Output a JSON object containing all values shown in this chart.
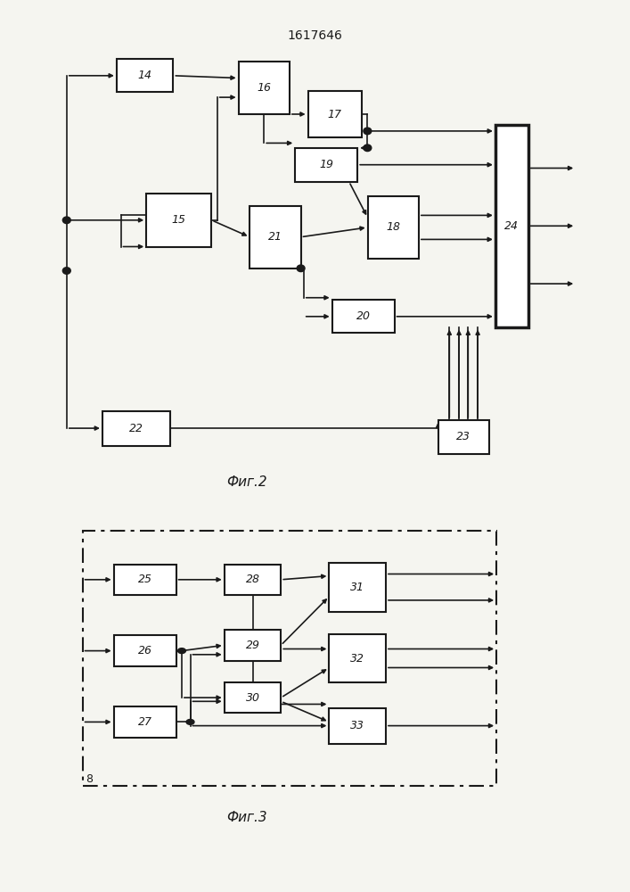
{
  "title": "1617646",
  "fig2_label": "Фиг.2",
  "fig3_label": "Фиг.3",
  "bg_color": "#f5f5f0",
  "box_color": "#ffffff",
  "line_color": "#1a1a1a",
  "fig2_blocks": {
    "14": [
      0.2,
      0.88,
      0.1,
      0.068
    ],
    "15": [
      0.26,
      0.58,
      0.115,
      0.11
    ],
    "16": [
      0.41,
      0.855,
      0.09,
      0.11
    ],
    "17": [
      0.535,
      0.8,
      0.095,
      0.095
    ],
    "18": [
      0.638,
      0.565,
      0.09,
      0.13
    ],
    "19": [
      0.52,
      0.695,
      0.11,
      0.07
    ],
    "20": [
      0.585,
      0.38,
      0.11,
      0.068
    ],
    "21": [
      0.43,
      0.545,
      0.09,
      0.13
    ],
    "22": [
      0.185,
      0.148,
      0.12,
      0.072
    ],
    "23": [
      0.762,
      0.13,
      0.09,
      0.07
    ],
    "24": [
      0.847,
      0.568,
      0.058,
      0.42
    ]
  },
  "fig3_blocks": {
    "25": [
      0.2,
      0.81,
      0.11,
      0.082
    ],
    "26": [
      0.2,
      0.62,
      0.11,
      0.082
    ],
    "27": [
      0.2,
      0.43,
      0.11,
      0.082
    ],
    "28": [
      0.39,
      0.81,
      0.1,
      0.082
    ],
    "29": [
      0.39,
      0.635,
      0.1,
      0.082
    ],
    "30": [
      0.39,
      0.495,
      0.1,
      0.082
    ],
    "31": [
      0.575,
      0.79,
      0.1,
      0.13
    ],
    "32": [
      0.575,
      0.6,
      0.1,
      0.13
    ],
    "33": [
      0.575,
      0.42,
      0.1,
      0.095
    ]
  }
}
